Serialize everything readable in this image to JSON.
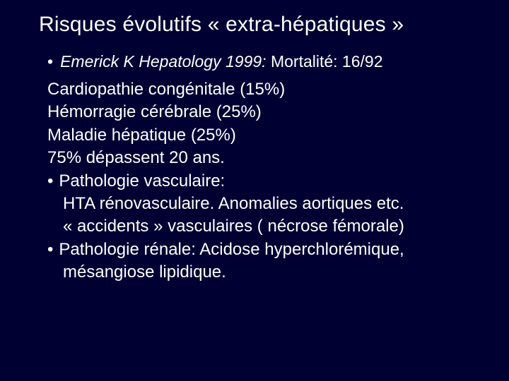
{
  "slide": {
    "background_color": "#000033",
    "text_color": "#ffffff",
    "title_fontsize": 30,
    "body_fontsize": 24,
    "citation_fontsize": 23,
    "title": "Risques évolutifs « extra-hépatiques »",
    "citation_prefix": "Emerick K Hepatology 1999:",
    "mortality": " Mortalité: 16/92",
    "lines": {
      "l1": "Cardiopathie congénitale (15%)",
      "l2": "Hémorragie cérébrale (25%)",
      "l3": "Maladie hépatique (25%)",
      "l4": "75% dépassent 20 ans.",
      "b1": "Pathologie vasculaire:",
      "b1_sub1": "HTA rénovasculaire. Anomalies aortiques etc.",
      "b1_sub2": "« accidents » vasculaires ( nécrose fémorale)",
      "b2_part1": "Pathologie rénale: Acidose hyperchlorémique,",
      "b2_part2": "mésangiose lipidique."
    },
    "bullet_char": "•"
  }
}
